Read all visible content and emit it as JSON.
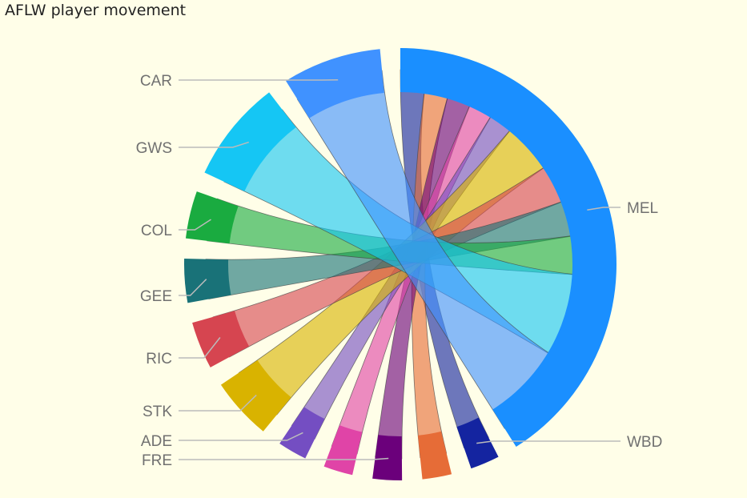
{
  "title": "AFLW player movement",
  "chart_data": {
    "type": "chord",
    "title": "AFLW player movement",
    "nodes": [
      {
        "id": "MEL",
        "label": "MEL",
        "color": "#1a8fff"
      },
      {
        "id": "WBD",
        "label": "WBD",
        "color": "#1424a0"
      },
      {
        "id": "n_orange",
        "label": "",
        "color": "#e66c37"
      },
      {
        "id": "FRE",
        "label": "FRE",
        "color": "#6b007b"
      },
      {
        "id": "n_pink",
        "label": "",
        "color": "#e044a7"
      },
      {
        "id": "ADE",
        "label": "ADE",
        "color": "#744ec2"
      },
      {
        "id": "STK",
        "label": "STK",
        "color": "#d9b300"
      },
      {
        "id": "RIC",
        "label": "RIC",
        "color": "#d64550"
      },
      {
        "id": "GEE",
        "label": "GEE",
        "color": "#197278"
      },
      {
        "id": "COL",
        "label": "COL",
        "color": "#1aab40"
      },
      {
        "id": "GWS",
        "label": "GWS",
        "color": "#15c6f4"
      },
      {
        "id": "CAR",
        "label": "CAR",
        "color": "#4092ff"
      }
    ],
    "links": [
      {
        "source": "WBD",
        "target": "MEL",
        "value": 8
      },
      {
        "source": "n_orange",
        "target": "MEL",
        "value": 8
      },
      {
        "source": "FRE",
        "target": "MEL",
        "value": 8
      },
      {
        "source": "n_pink",
        "target": "MEL",
        "value": 8
      },
      {
        "source": "ADE",
        "target": "MEL",
        "value": 8
      },
      {
        "source": "STK",
        "target": "MEL",
        "value": 17
      },
      {
        "source": "RIC",
        "target": "MEL",
        "value": 13
      },
      {
        "source": "GEE",
        "target": "MEL",
        "value": 12
      },
      {
        "source": "COL",
        "target": "MEL",
        "value": 13
      },
      {
        "source": "GWS",
        "target": "MEL",
        "value": 28
      },
      {
        "source": "CAR",
        "target": "MEL",
        "value": 27
      }
    ]
  }
}
